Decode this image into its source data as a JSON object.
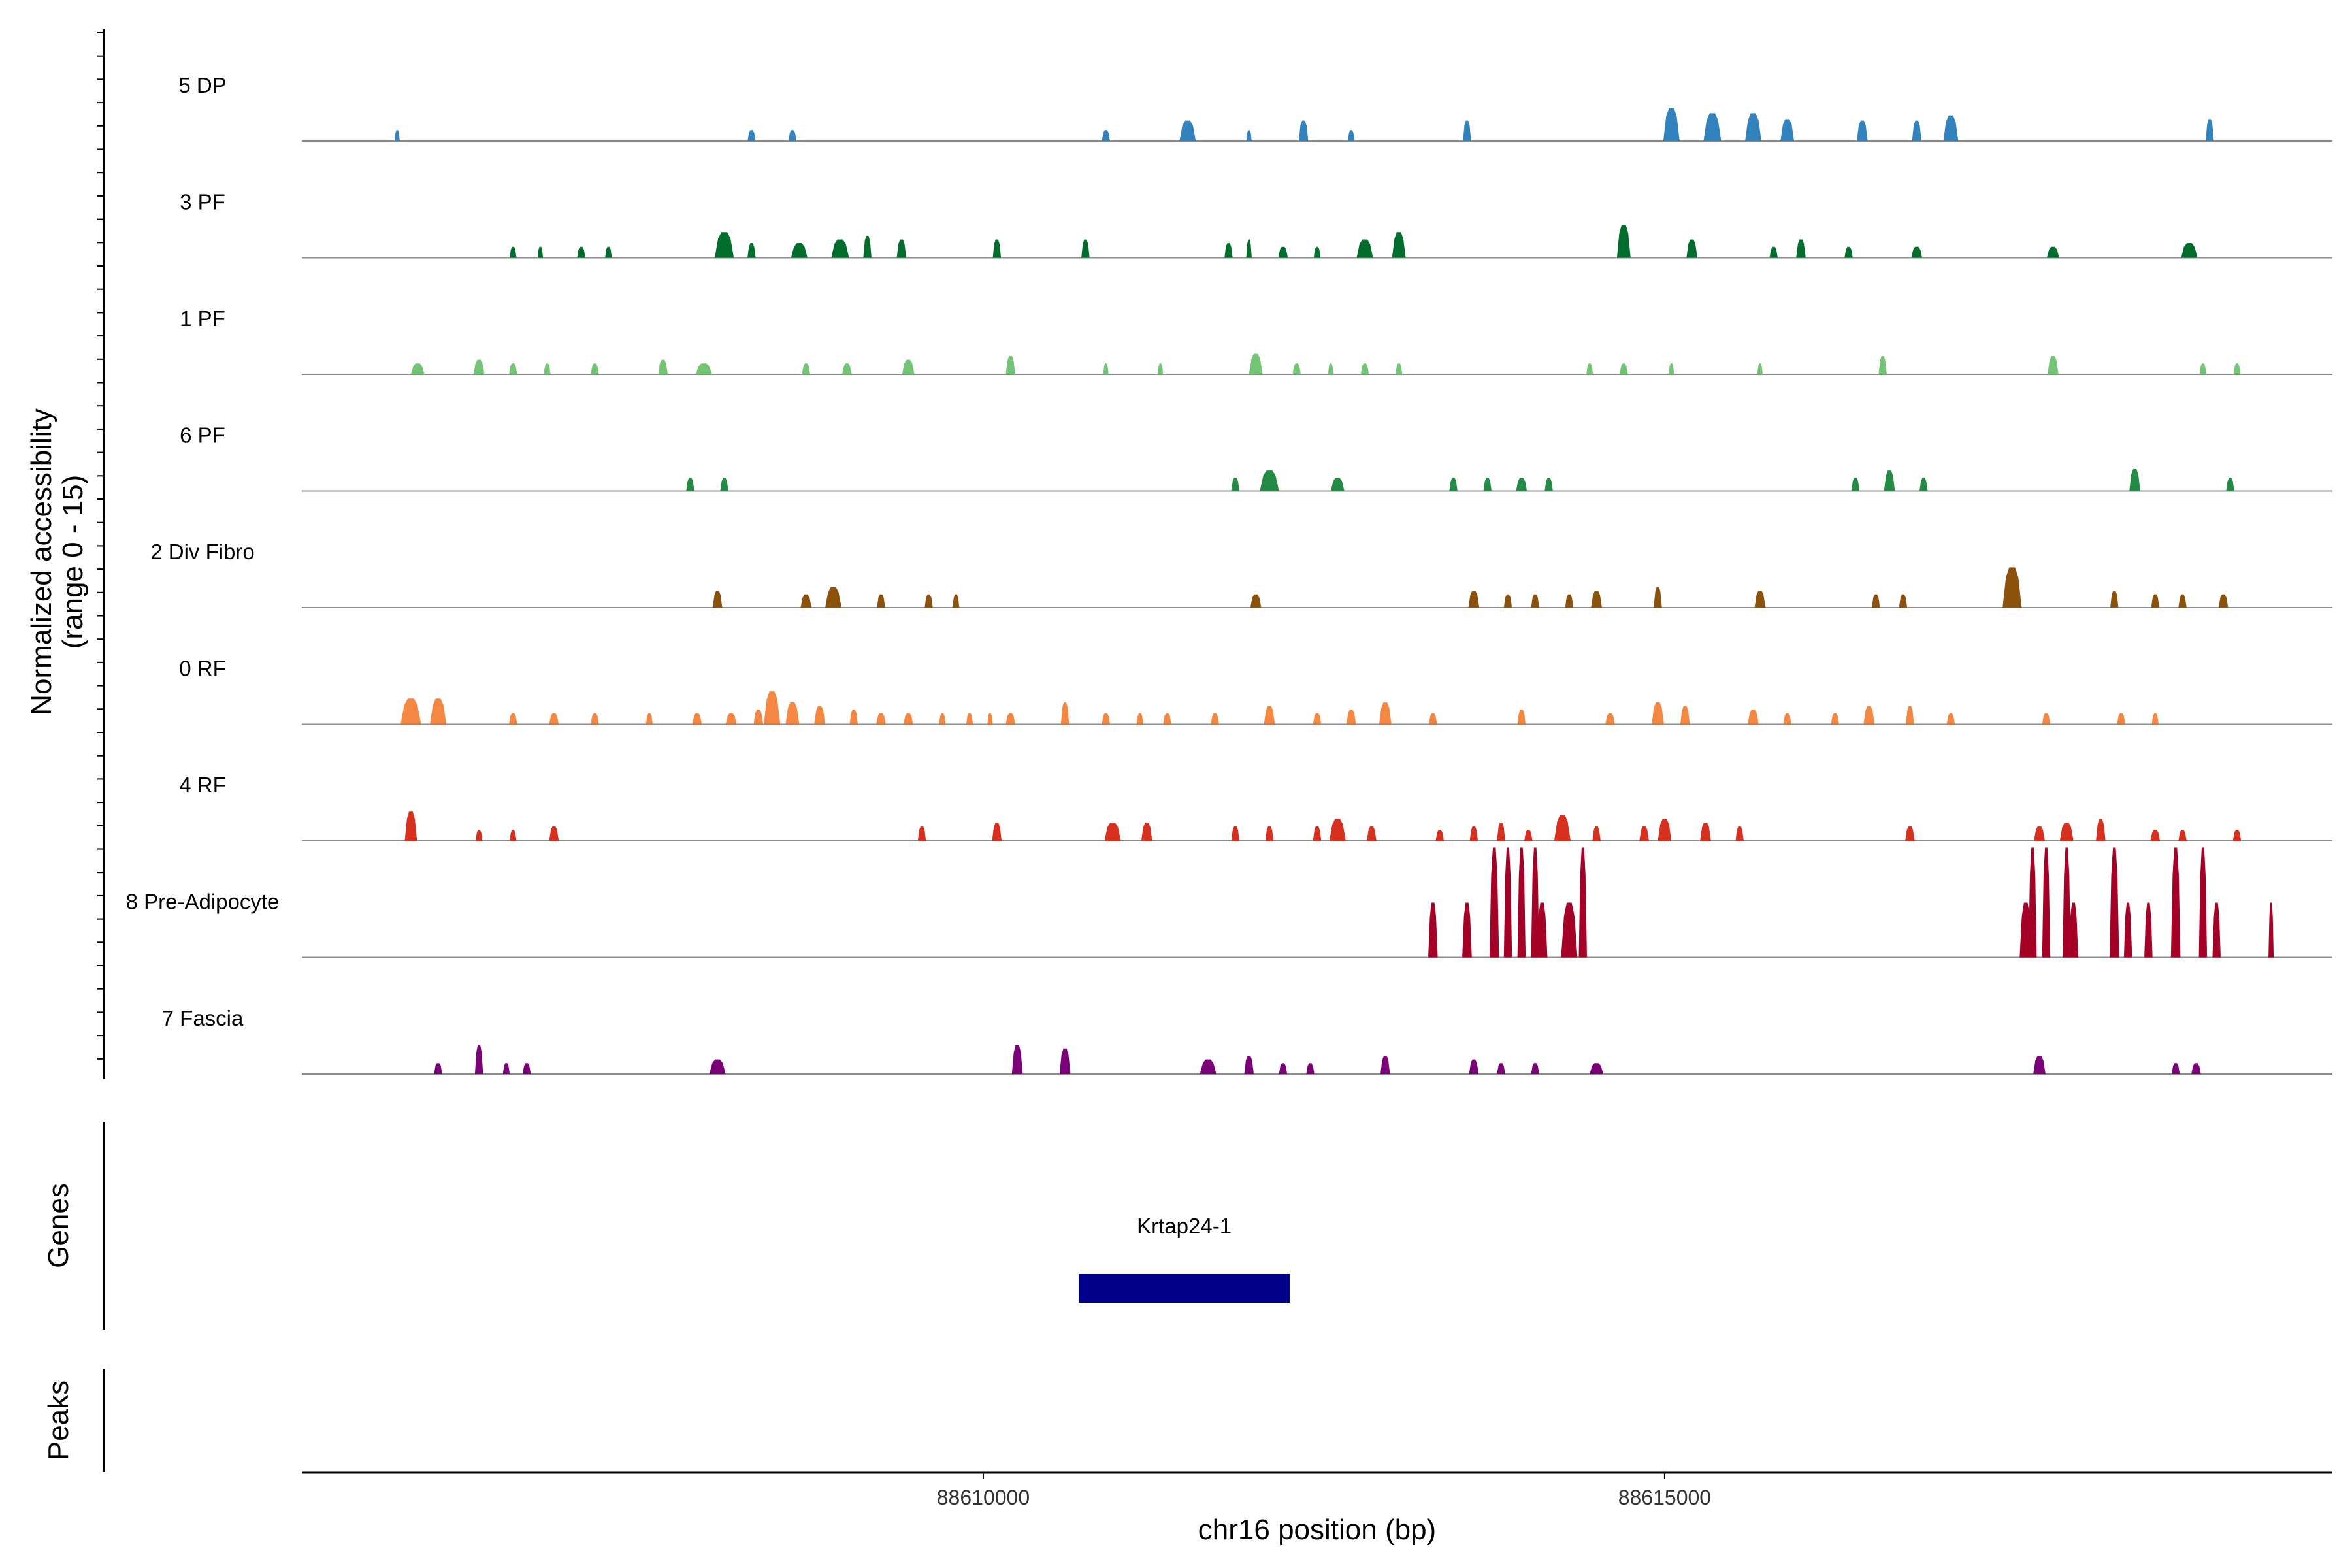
{
  "chart_data": {
    "type": "area",
    "title": "",
    "xlabel": "chr16 position (bp)",
    "ylabel": "Normalized accessibility\n(range 0 - 15)",
    "ylabel_line1": "Normalized accessibility",
    "ylabel_line2": "(range 0 - 15)",
    "ylim": [
      0,
      15
    ],
    "xlim": [
      88605000,
      88619900
    ],
    "x_ticks": [
      88610000,
      88615000
    ],
    "x_tick_labels": [
      "88610000",
      "88615000"
    ],
    "tracks": [
      {
        "name": "5 DP",
        "color": "#3182BD",
        "peaks": [
          [
            88605700,
            30,
            1.5
          ],
          [
            88608300,
            60,
            1.5
          ],
          [
            88608600,
            60,
            1.5
          ],
          [
            88610900,
            60,
            1.5
          ],
          [
            88611500,
            120,
            2.8
          ],
          [
            88611950,
            40,
            1.5
          ],
          [
            88612350,
            70,
            2.8
          ],
          [
            88612700,
            50,
            1.5
          ],
          [
            88613550,
            60,
            2.8
          ],
          [
            88615050,
            120,
            4.5
          ],
          [
            88615350,
            130,
            3.8
          ],
          [
            88615650,
            120,
            3.8
          ],
          [
            88615900,
            100,
            3.0
          ],
          [
            88616450,
            80,
            2.8
          ],
          [
            88616850,
            70,
            2.8
          ],
          [
            88617100,
            110,
            3.5
          ],
          [
            88619000,
            60,
            3.0
          ]
        ]
      },
      {
        "name": "3 PF",
        "color": "#006D2C",
        "peaks": [
          [
            88606550,
            50,
            1.5
          ],
          [
            88606750,
            40,
            1.5
          ],
          [
            88607050,
            60,
            1.5
          ],
          [
            88607250,
            50,
            1.5
          ],
          [
            88608100,
            140,
            3.5
          ],
          [
            88608300,
            60,
            2.0
          ],
          [
            88608650,
            120,
            2.0
          ],
          [
            88608950,
            130,
            2.5
          ],
          [
            88609150,
            60,
            3.0
          ],
          [
            88609400,
            70,
            2.5
          ],
          [
            88610100,
            60,
            2.5
          ],
          [
            88610750,
            60,
            2.5
          ],
          [
            88611800,
            60,
            2.0
          ],
          [
            88611950,
            40,
            2.5
          ],
          [
            88612200,
            70,
            1.5
          ],
          [
            88612450,
            50,
            1.5
          ],
          [
            88612800,
            120,
            2.5
          ],
          [
            88613050,
            100,
            3.5
          ],
          [
            88614700,
            100,
            4.5
          ],
          [
            88615200,
            80,
            2.5
          ],
          [
            88615800,
            60,
            1.5
          ],
          [
            88616000,
            70,
            2.5
          ],
          [
            88616350,
            60,
            1.5
          ],
          [
            88616850,
            80,
            1.5
          ],
          [
            88617850,
            90,
            1.5
          ],
          [
            88618850,
            120,
            2.0
          ]
        ]
      },
      {
        "name": "1 PF",
        "color": "#74C476",
        "peaks": [
          [
            88605850,
            100,
            1.5
          ],
          [
            88606300,
            80,
            2.0
          ],
          [
            88606550,
            60,
            1.5
          ],
          [
            88606800,
            50,
            1.5
          ],
          [
            88607150,
            60,
            1.5
          ],
          [
            88607650,
            70,
            2.0
          ],
          [
            88607950,
            120,
            1.5
          ],
          [
            88608700,
            60,
            1.5
          ],
          [
            88609000,
            70,
            1.5
          ],
          [
            88609450,
            90,
            2.0
          ],
          [
            88610200,
            70,
            2.5
          ],
          [
            88610900,
            40,
            1.5
          ],
          [
            88611300,
            40,
            1.5
          ],
          [
            88612000,
            100,
            2.8
          ],
          [
            88612300,
            60,
            1.5
          ],
          [
            88612550,
            40,
            1.5
          ],
          [
            88612800,
            60,
            1.5
          ],
          [
            88613050,
            50,
            1.5
          ],
          [
            88614450,
            50,
            1.5
          ],
          [
            88614700,
            60,
            1.5
          ],
          [
            88615050,
            40,
            1.5
          ],
          [
            88615700,
            40,
            1.5
          ],
          [
            88616600,
            60,
            2.5
          ],
          [
            88617850,
            80,
            2.5
          ],
          [
            88618950,
            50,
            1.5
          ],
          [
            88619200,
            50,
            1.5
          ]
        ]
      },
      {
        "name": "6 PF",
        "color": "#238B45",
        "peaks": [
          [
            88607850,
            60,
            1.8
          ],
          [
            88608100,
            60,
            1.8
          ],
          [
            88611850,
            60,
            1.8
          ],
          [
            88612100,
            140,
            2.8
          ],
          [
            88612600,
            100,
            1.8
          ],
          [
            88613450,
            60,
            1.8
          ],
          [
            88613700,
            60,
            1.8
          ],
          [
            88613950,
            80,
            1.8
          ],
          [
            88614150,
            60,
            1.8
          ],
          [
            88616400,
            60,
            1.8
          ],
          [
            88616650,
            80,
            2.8
          ],
          [
            88616900,
            60,
            1.8
          ],
          [
            88618450,
            80,
            3.0
          ],
          [
            88619150,
            60,
            1.8
          ]
        ]
      },
      {
        "name": "2 Div Fibro",
        "color": "#8C510A",
        "peaks": [
          [
            88608050,
            70,
            2.3
          ],
          [
            88608700,
            80,
            1.8
          ],
          [
            88608900,
            120,
            2.8
          ],
          [
            88609250,
            60,
            1.8
          ],
          [
            88609600,
            60,
            1.8
          ],
          [
            88609800,
            50,
            1.8
          ],
          [
            88612000,
            80,
            1.8
          ],
          [
            88613600,
            80,
            2.3
          ],
          [
            88613850,
            60,
            1.8
          ],
          [
            88614050,
            60,
            1.8
          ],
          [
            88614300,
            60,
            1.8
          ],
          [
            88614500,
            80,
            2.3
          ],
          [
            88614950,
            60,
            2.8
          ],
          [
            88615700,
            80,
            2.3
          ],
          [
            88616550,
            60,
            1.8
          ],
          [
            88616750,
            60,
            1.8
          ],
          [
            88617550,
            140,
            5.5
          ],
          [
            88618300,
            60,
            2.3
          ],
          [
            88618600,
            60,
            1.8
          ],
          [
            88618800,
            60,
            1.8
          ],
          [
            88619100,
            70,
            1.8
          ]
        ]
      },
      {
        "name": "0 RF",
        "color": "#F16913",
        "opacity": 0.8,
        "peaks": [
          [
            88605800,
            150,
            3.5
          ],
          [
            88606000,
            120,
            3.5
          ],
          [
            88606550,
            60,
            1.5
          ],
          [
            88606850,
            70,
            1.5
          ],
          [
            88607150,
            60,
            1.5
          ],
          [
            88607550,
            50,
            1.5
          ],
          [
            88607900,
            70,
            1.5
          ],
          [
            88608150,
            80,
            1.5
          ],
          [
            88608350,
            70,
            2.0
          ],
          [
            88608450,
            120,
            4.5
          ],
          [
            88608600,
            100,
            3.0
          ],
          [
            88608800,
            80,
            2.5
          ],
          [
            88609050,
            60,
            2.0
          ],
          [
            88609250,
            70,
            1.5
          ],
          [
            88609450,
            70,
            1.5
          ],
          [
            88609700,
            50,
            1.5
          ],
          [
            88609900,
            50,
            1.5
          ],
          [
            88610050,
            40,
            1.5
          ],
          [
            88610200,
            70,
            1.5
          ],
          [
            88610600,
            60,
            3.0
          ],
          [
            88610900,
            60,
            1.5
          ],
          [
            88611150,
            50,
            1.5
          ],
          [
            88611350,
            60,
            1.5
          ],
          [
            88611700,
            60,
            1.5
          ],
          [
            88612100,
            80,
            2.5
          ],
          [
            88612450,
            60,
            1.5
          ],
          [
            88612700,
            70,
            2.0
          ],
          [
            88612950,
            90,
            3.0
          ],
          [
            88613300,
            60,
            1.5
          ],
          [
            88613950,
            60,
            2.0
          ],
          [
            88614600,
            70,
            1.5
          ],
          [
            88614950,
            90,
            3.0
          ],
          [
            88615150,
            70,
            2.5
          ],
          [
            88615650,
            80,
            2.0
          ],
          [
            88615900,
            60,
            1.5
          ],
          [
            88616250,
            60,
            1.5
          ],
          [
            88616500,
            80,
            2.5
          ],
          [
            88616800,
            60,
            2.5
          ],
          [
            88617100,
            60,
            1.5
          ],
          [
            88617800,
            60,
            1.5
          ],
          [
            88618350,
            60,
            1.5
          ],
          [
            88618600,
            50,
            1.5
          ]
        ]
      },
      {
        "name": "4 RF",
        "color": "#D7301F",
        "peaks": [
          [
            88605800,
            90,
            4.0
          ],
          [
            88606300,
            50,
            1.5
          ],
          [
            88606550,
            50,
            1.5
          ],
          [
            88606850,
            70,
            2.0
          ],
          [
            88609550,
            60,
            2.0
          ],
          [
            88610100,
            70,
            2.5
          ],
          [
            88610950,
            120,
            2.5
          ],
          [
            88611200,
            80,
            2.5
          ],
          [
            88611850,
            60,
            2.0
          ],
          [
            88612100,
            60,
            2.0
          ],
          [
            88612450,
            60,
            2.0
          ],
          [
            88612600,
            120,
            3.0
          ],
          [
            88612850,
            70,
            2.0
          ],
          [
            88613350,
            60,
            1.5
          ],
          [
            88613600,
            60,
            2.0
          ],
          [
            88613800,
            60,
            2.5
          ],
          [
            88614000,
            60,
            1.5
          ],
          [
            88614250,
            120,
            3.5
          ],
          [
            88614500,
            60,
            2.0
          ],
          [
            88614850,
            70,
            2.0
          ],
          [
            88615000,
            100,
            3.0
          ],
          [
            88615300,
            80,
            2.5
          ],
          [
            88615550,
            60,
            2.0
          ],
          [
            88616800,
            70,
            2.0
          ],
          [
            88617750,
            80,
            2.0
          ],
          [
            88617950,
            100,
            2.5
          ],
          [
            88618200,
            70,
            3.0
          ],
          [
            88618600,
            70,
            1.5
          ],
          [
            88618800,
            60,
            1.5
          ],
          [
            88619200,
            60,
            1.5
          ]
        ]
      },
      {
        "name": "8 Pre-Adipocyte",
        "color": "#A50026",
        "peaks": [
          [
            88613300,
            70,
            7.5
          ],
          [
            88613550,
            70,
            7.5
          ],
          [
            88613750,
            70,
            15
          ],
          [
            88613850,
            60,
            15
          ],
          [
            88613950,
            60,
            15
          ],
          [
            88614050,
            60,
            15
          ],
          [
            88614100,
            80,
            7.5
          ],
          [
            88614300,
            120,
            7.5
          ],
          [
            88614400,
            60,
            15
          ],
          [
            88617650,
            90,
            7.5
          ],
          [
            88617700,
            60,
            15
          ],
          [
            88617800,
            60,
            15
          ],
          [
            88617950,
            60,
            15
          ],
          [
            88618000,
            70,
            7.5
          ],
          [
            88618300,
            70,
            15
          ],
          [
            88618400,
            60,
            7.5
          ],
          [
            88618550,
            60,
            7.5
          ],
          [
            88618750,
            70,
            15
          ],
          [
            88618950,
            60,
            15
          ],
          [
            88619050,
            60,
            7.5
          ],
          [
            88619450,
            10,
            7.5
          ]
        ]
      },
      {
        "name": "7 Fascia",
        "color": "#7A0177",
        "peaks": [
          [
            88606000,
            60,
            1.5
          ],
          [
            88606300,
            60,
            4.0
          ],
          [
            88606500,
            50,
            1.5
          ],
          [
            88606650,
            60,
            1.5
          ],
          [
            88608050,
            120,
            2.0
          ],
          [
            88610250,
            80,
            4.0
          ],
          [
            88610600,
            80,
            3.5
          ],
          [
            88611650,
            120,
            2.0
          ],
          [
            88611950,
            70,
            2.5
          ],
          [
            88612200,
            60,
            1.5
          ],
          [
            88612400,
            60,
            1.5
          ],
          [
            88612950,
            70,
            2.5
          ],
          [
            88613600,
            70,
            2.0
          ],
          [
            88613800,
            60,
            1.5
          ],
          [
            88614050,
            60,
            1.5
          ],
          [
            88614500,
            100,
            1.5
          ],
          [
            88617750,
            90,
            2.5
          ],
          [
            88618750,
            60,
            1.5
          ],
          [
            88618900,
            70,
            1.5
          ]
        ]
      }
    ],
    "genes": [
      {
        "name": "Krtap24-1",
        "start": 88610700,
        "end": 88612250,
        "color": "#00008B"
      }
    ],
    "panel_labels": {
      "genes": "Genes",
      "peaks": "Peaks"
    }
  }
}
